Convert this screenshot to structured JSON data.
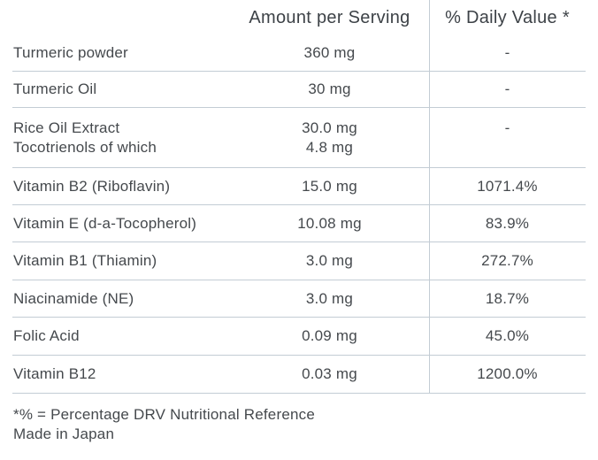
{
  "table": {
    "headers": {
      "substance": "",
      "amount": "Amount per Serving",
      "daily_value": "% Daily Value *"
    },
    "rows": [
      {
        "name": "Turmeric powder",
        "amount": "360 mg",
        "daily": "-"
      },
      {
        "name": "Turmeric Oil",
        "amount": "30 mg",
        "daily": "-"
      },
      {
        "name": "Rice Oil Extract",
        "name2": "Tocotrienols of which",
        "amount": "30.0 mg",
        "amount2": "4.8 mg",
        "daily": "-"
      },
      {
        "name": "Vitamin B2 (Riboflavin)",
        "amount": "15.0 mg",
        "daily": "1071.4%"
      },
      {
        "name": "Vitamin E (d-a-Tocopherol)",
        "amount": "10.08 mg",
        "daily": "83.9%"
      },
      {
        "name": "Vitamin B1 (Thiamin)",
        "amount": "3.0 mg",
        "daily": "272.7%"
      },
      {
        "name": "Niacinamide (NE)",
        "amount": "3.0 mg",
        "daily": "18.7%"
      },
      {
        "name": "Folic Acid",
        "amount": "0.09 mg",
        "daily": "45.0%"
      },
      {
        "name": "Vitamin B12",
        "amount": "0.03 mg",
        "daily": "1200.0%"
      }
    ]
  },
  "footer": {
    "line1": "*% = Percentage DRV Nutritional Reference",
    "line2": "Made in Japan"
  },
  "colors": {
    "background": "#ffffff",
    "text": "#45494d",
    "header_text": "#3d4247",
    "grid_line": "#c3ccd4"
  }
}
